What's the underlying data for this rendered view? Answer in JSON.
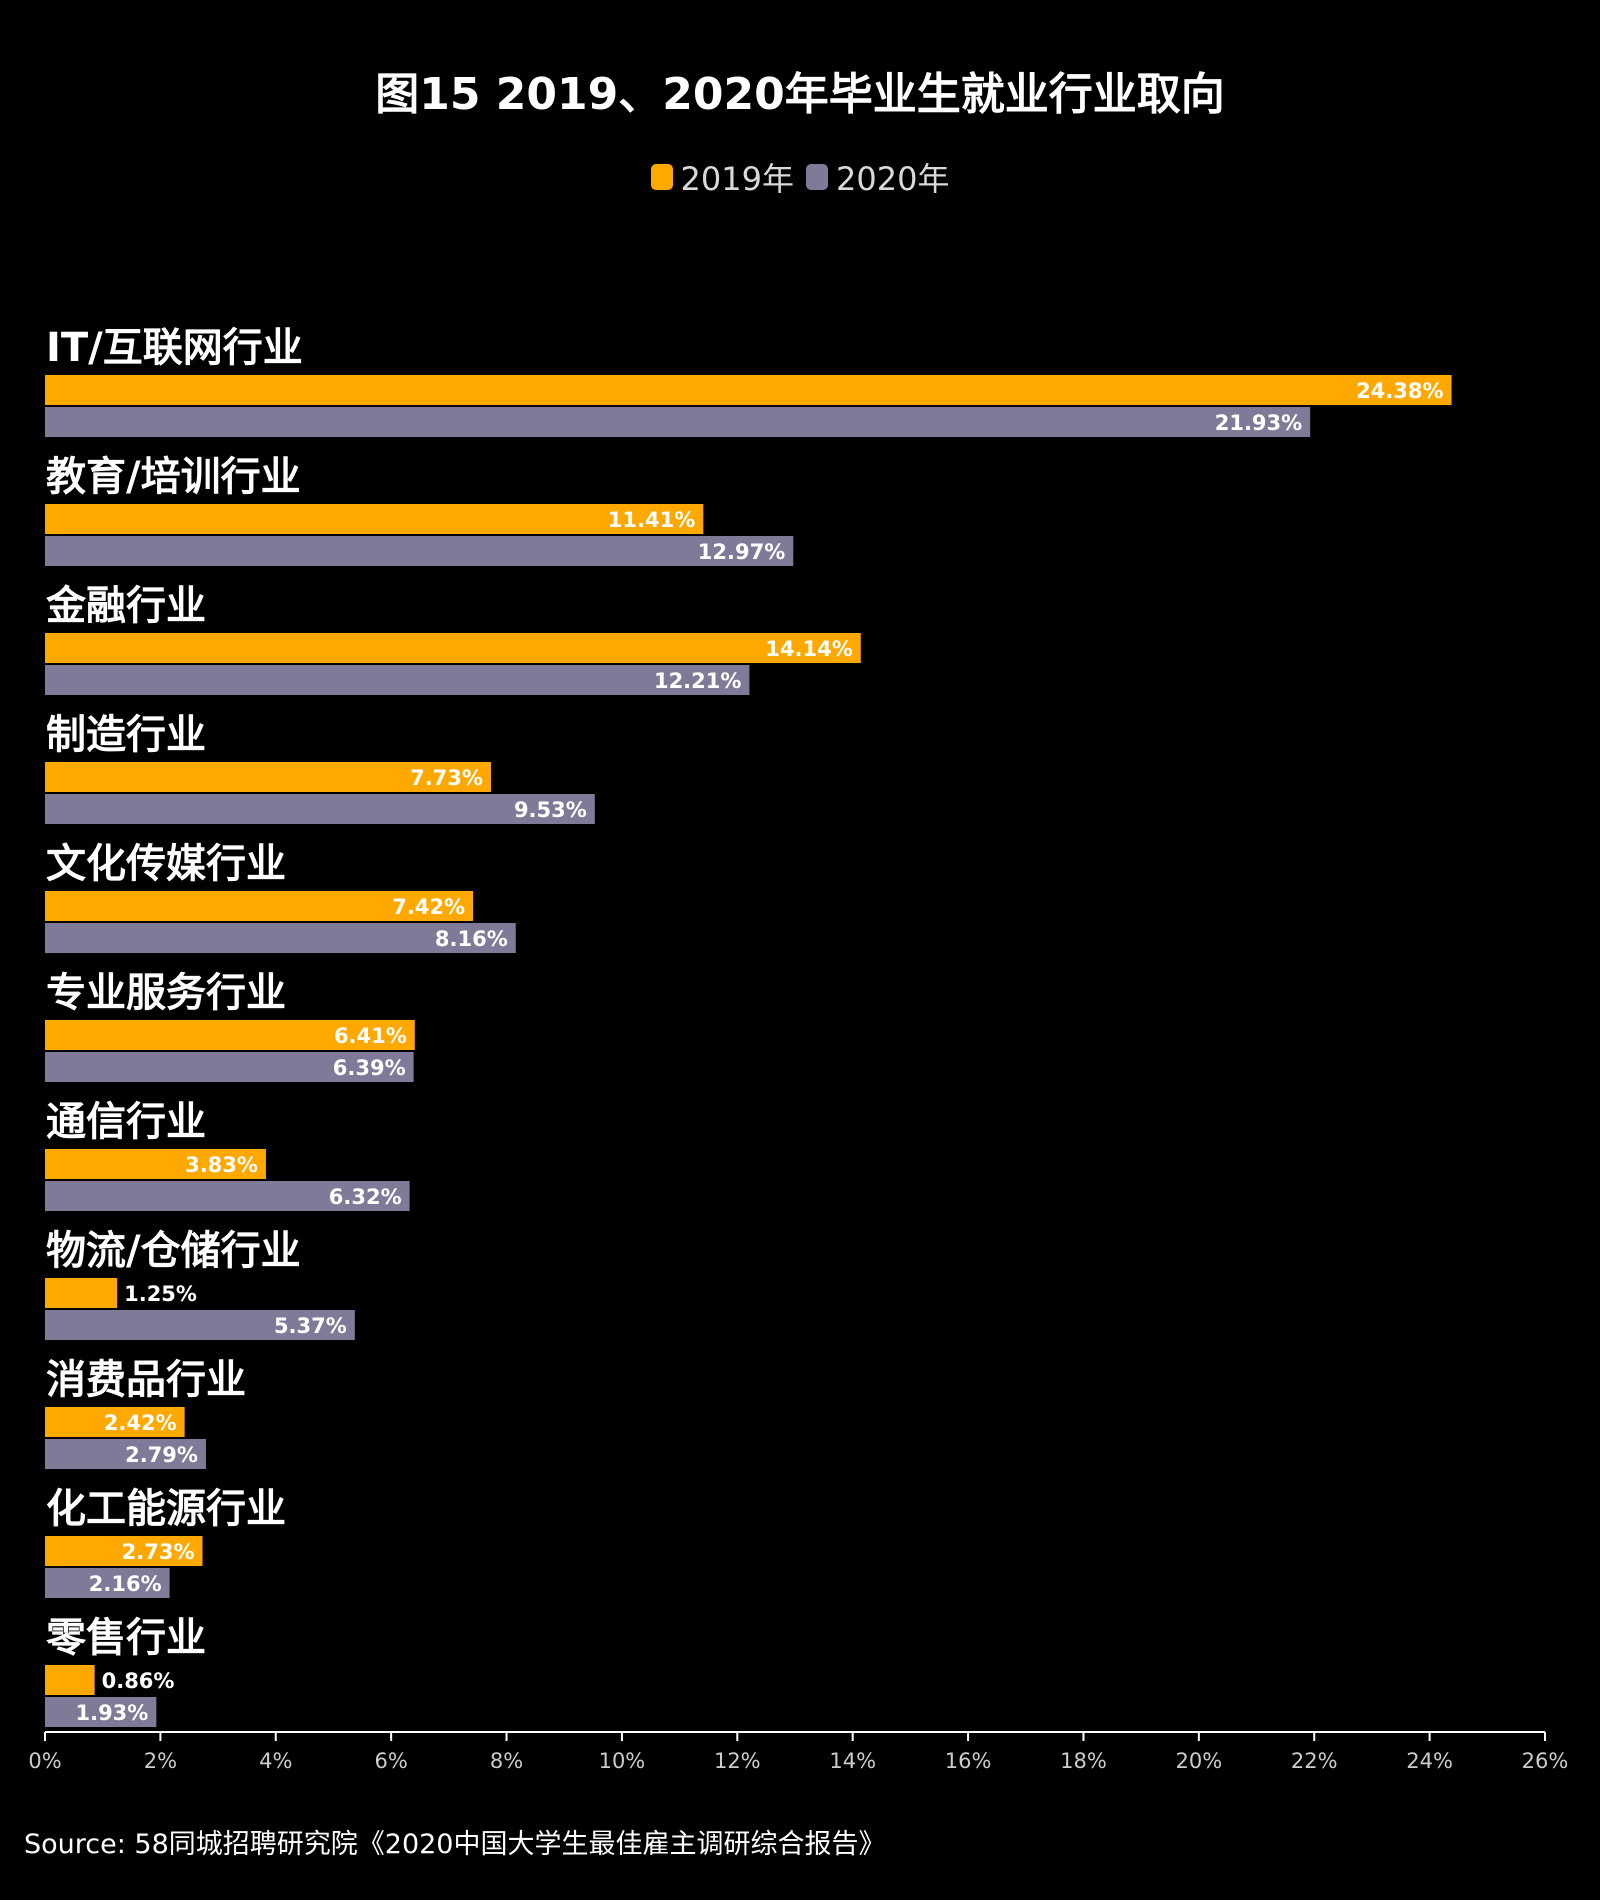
{
  "title": "图15 2019、2020年毕业生就业行业取向",
  "source": "Source: 58同城招聘研究院《2020中国大学生最佳雇主调研综合报告》",
  "colors": {
    "background": "#000000",
    "series_2019": "#FFA800",
    "series_2020": "#7F7A98",
    "text": "#FFFFFF",
    "axis": "#FFFFFF"
  },
  "chart_data": {
    "type": "bar",
    "orientation": "horizontal",
    "categories": [
      "IT/互联网行业",
      "教育/培训行业",
      "金融行业",
      "制造行业",
      "文化传媒行业",
      "专业服务行业",
      "通信行业",
      "物流/仓储行业",
      "消费品行业",
      "化工能源行业",
      "零售行业"
    ],
    "series": [
      {
        "name": "2019年",
        "values": [
          24.38,
          11.41,
          14.14,
          7.73,
          7.42,
          6.41,
          3.83,
          1.25,
          2.42,
          2.73,
          0.86
        ]
      },
      {
        "name": "2020年",
        "values": [
          21.93,
          12.97,
          12.21,
          9.53,
          8.16,
          6.39,
          6.32,
          5.37,
          2.79,
          2.16,
          1.93
        ]
      }
    ],
    "data_labels": [
      [
        "24.38%",
        "11.41%",
        "14.14%",
        "7.73%",
        "7.42%",
        "6.41%",
        "3.83%",
        "1.25%",
        "2.42%",
        "2.73%",
        "0.86%"
      ],
      [
        "21.93%",
        "12.97%",
        "12.21%",
        "9.53%",
        "8.16%",
        "6.39%",
        "6.32%",
        "5.37%",
        "2.79%",
        "2.16%",
        "1.93%"
      ]
    ],
    "xlim": [
      0,
      26
    ],
    "xticks": [
      0,
      2,
      4,
      6,
      8,
      10,
      12,
      14,
      16,
      18,
      20,
      22,
      24,
      26
    ],
    "xtick_labels": [
      "0%",
      "2%",
      "4%",
      "6%",
      "8%",
      "10%",
      "12%",
      "14%",
      "16%",
      "18%",
      "20%",
      "22%",
      "24%",
      "26%"
    ],
    "legend_position": "top-center",
    "grid": false
  }
}
